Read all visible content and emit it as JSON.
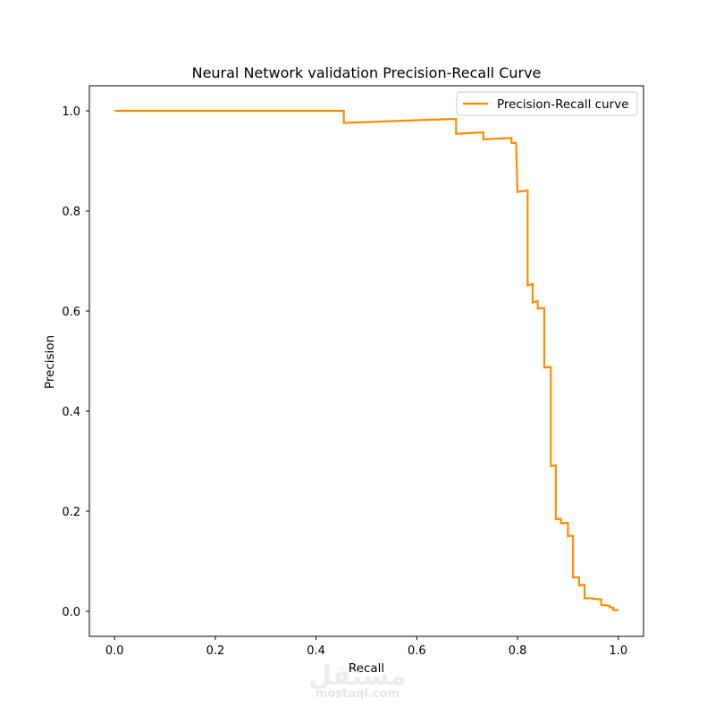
{
  "chart_data": {
    "type": "line",
    "title": "Neural Network validation Precision-Recall Curve",
    "xlabel": "Recall",
    "ylabel": "Precision",
    "xlim": [
      -0.05,
      1.05
    ],
    "ylim": [
      -0.05,
      1.05
    ],
    "xticks": [
      "0.0",
      "0.2",
      "0.4",
      "0.6",
      "0.8",
      "1.0"
    ],
    "yticks": [
      "0.0",
      "0.2",
      "0.4",
      "0.6",
      "0.8",
      "1.0"
    ],
    "grid": false,
    "legend_position": "top-right",
    "series": [
      {
        "name": "Precision-Recall curve",
        "color": "#ff8c00",
        "step": true,
        "x": [
          0.0,
          0.455,
          0.455,
          0.678,
          0.678,
          0.732,
          0.732,
          0.788,
          0.788,
          0.797,
          0.797,
          0.8,
          0.8,
          0.82,
          0.82,
          0.83,
          0.83,
          0.84,
          0.84,
          0.853,
          0.853,
          0.866,
          0.866,
          0.876,
          0.876,
          0.886,
          0.886,
          0.9,
          0.9,
          0.91,
          0.91,
          0.922,
          0.922,
          0.933,
          0.933,
          0.95,
          0.95,
          0.966,
          0.966,
          0.983,
          0.983,
          0.99,
          0.99,
          1.0
        ],
        "y": [
          1.0,
          1.0,
          0.976,
          0.984,
          0.954,
          0.957,
          0.943,
          0.946,
          0.936,
          0.936,
          0.936,
          0.838,
          0.838,
          0.841,
          0.651,
          0.654,
          0.617,
          0.62,
          0.605,
          0.606,
          0.487,
          0.488,
          0.29,
          0.292,
          0.184,
          0.185,
          0.176,
          0.177,
          0.15,
          0.151,
          0.068,
          0.068,
          0.052,
          0.053,
          0.026,
          0.026,
          0.025,
          0.024,
          0.013,
          0.011,
          0.008,
          0.007,
          0.003,
          0.002
        ]
      }
    ]
  },
  "watermark": {
    "arabic": "مستقل",
    "latin": "mostaql.com"
  }
}
